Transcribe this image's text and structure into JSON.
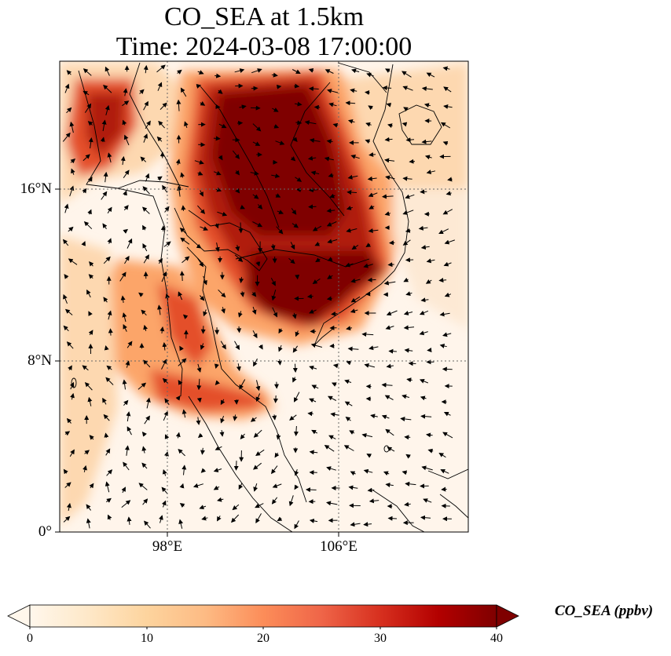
{
  "title": {
    "line1": "CO_SEA at 1.5km",
    "line2": "Time: 2024-03-08 17:00:00"
  },
  "map": {
    "lat_range": [
      0,
      22
    ],
    "lon_range": [
      93,
      112
    ],
    "lat_ticks": [
      {
        "value": 16,
        "label": "16°N"
      },
      {
        "value": 8,
        "label": "8°N"
      },
      {
        "value": 0,
        "label": "0°"
      }
    ],
    "lon_ticks": [
      {
        "value": 98,
        "label": "98°E"
      },
      {
        "value": 106,
        "label": "106°E"
      }
    ],
    "gridlines": "dotted",
    "field_colors": [
      "#fff5eb",
      "#fdd8b0",
      "#fca569",
      "#e4502c",
      "#b01c0c",
      "#7f0000"
    ]
  },
  "colorbar": {
    "label": "CO_SEA (ppbv)",
    "min": 0,
    "max": 40,
    "ticks": [
      "0",
      "10",
      "20",
      "30",
      "40"
    ],
    "extend": "both",
    "colormap": "OrRd"
  }
}
